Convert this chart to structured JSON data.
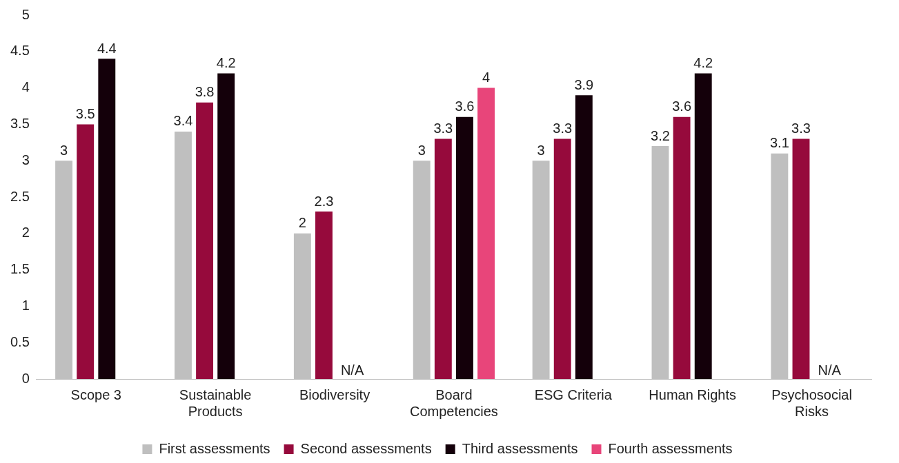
{
  "chart_data": {
    "type": "bar",
    "categories": [
      "Scope 3",
      "Sustainable Products",
      "Biodiversity",
      "Board Competencies",
      "ESG Criteria",
      "Human Rights",
      "Psychosocial Risks"
    ],
    "series": [
      {
        "name": "First assessments",
        "color": "#bfbfbf",
        "values": [
          3,
          3.4,
          2,
          3,
          3,
          3.2,
          3.1
        ],
        "value_labels": [
          "3",
          "3.4",
          "2",
          "3",
          "3",
          "3.2",
          "3.1"
        ]
      },
      {
        "name": "Second assessments",
        "color": "#960a3c",
        "values": [
          3.5,
          3.8,
          2.3,
          3.3,
          3.3,
          3.6,
          3.3
        ],
        "value_labels": [
          "3.5",
          "3.8",
          "2.3",
          "3.3",
          "3.3",
          "3.6",
          "3.3"
        ]
      },
      {
        "name": "Third assessments",
        "color": "#14000a",
        "values": [
          4.4,
          4.2,
          null,
          3.6,
          3.9,
          4.2,
          null
        ],
        "value_labels": [
          "4.4",
          "4.2",
          "N/A",
          "3.6",
          "3.9",
          "4.2",
          "N/A"
        ]
      },
      {
        "name": "Fourth assessments",
        "color": "#e8457a",
        "values": [
          null,
          null,
          null,
          4,
          null,
          null,
          null
        ],
        "value_labels": [
          null,
          null,
          null,
          "4",
          null,
          null,
          null
        ]
      }
    ],
    "ylim": [
      0,
      5
    ],
    "yticks": [
      0,
      0.5,
      1,
      1.5,
      2,
      2.5,
      3,
      3.5,
      4,
      4.5,
      5
    ],
    "grid": false,
    "legend": "bottom"
  }
}
